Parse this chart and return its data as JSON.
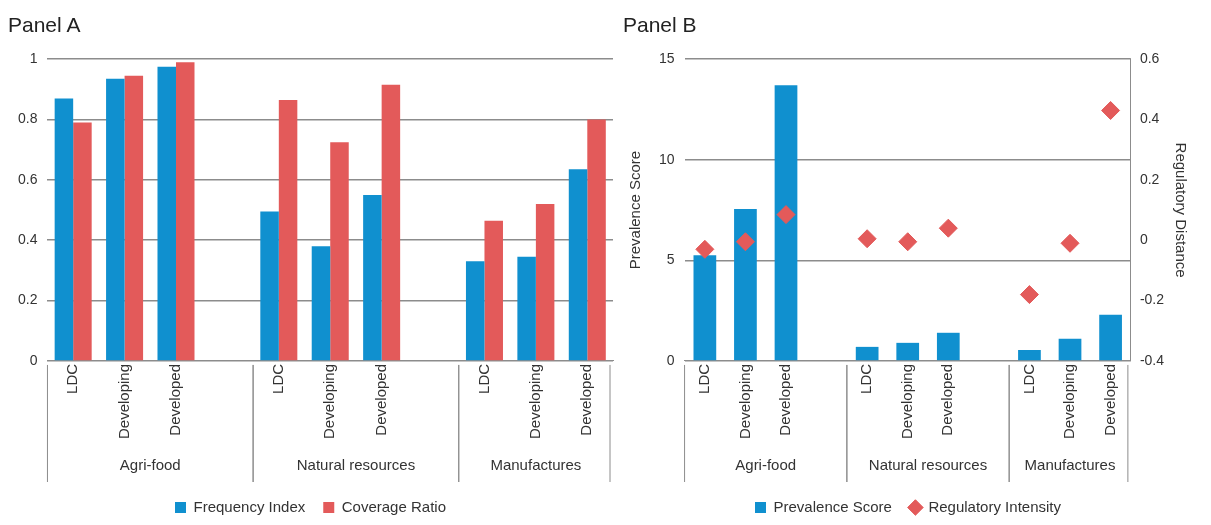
{
  "chart_data": [
    {
      "type": "bar",
      "title": "Panel A",
      "categories": [
        "LDC",
        "Developing",
        "Developed",
        null,
        "LDC",
        "Developing",
        "Developed",
        null,
        "LDC",
        "Developing",
        "Developed"
      ],
      "series": [
        {
          "name": "Frequency Index",
          "color": "#1090cf",
          "values": [
            0.87,
            0.935,
            0.975,
            null,
            0.495,
            0.38,
            0.55,
            null,
            0.33,
            0.345,
            0.635
          ]
        },
        {
          "name": "Coverage Ratio",
          "color": "#e35a5a",
          "values": [
            0.79,
            0.945,
            0.99,
            null,
            0.865,
            0.725,
            0.915,
            null,
            0.465,
            0.52,
            0.8
          ]
        }
      ],
      "annotations": [
        "Agri-food",
        "Natural resources",
        "Manufactures"
      ],
      "ylim": [
        0,
        1
      ],
      "yticks": [
        0,
        0.2,
        0.4,
        0.6,
        0.8,
        1
      ],
      "grid": "y",
      "legend": "bottom"
    },
    {
      "type": "bar",
      "title": "Panel B",
      "categories": [
        "LDC",
        "Developing",
        "Developed",
        null,
        "LDC",
        "Developing",
        "Developed",
        null,
        "LDC",
        "Developing",
        "Developed"
      ],
      "series": [
        {
          "name": "Prevalence Score",
          "color": "#1090cf",
          "values": [
            5.25,
            7.55,
            13.7,
            null,
            0.7,
            0.9,
            1.4,
            null,
            0.55,
            1.1,
            2.3
          ]
        },
        {
          "name": "Regulatory Intensity",
          "type": "scatter",
          "axis": "y2",
          "color": "#e35a5a",
          "values": [
            -0.03,
            -0.005,
            0.085,
            null,
            0.005,
            -0.005,
            0.04,
            null,
            -0.18,
            -0.01,
            0.43
          ]
        }
      ],
      "annotations": [
        "Agri-food",
        "Natural resources",
        "Manufactures"
      ],
      "ylabel": "Prevalence Score",
      "y2label": "Regulatory Distance",
      "ylim": [
        0,
        15
      ],
      "yticks": [
        0,
        5,
        10,
        15
      ],
      "y2lim": [
        -0.4,
        0.6
      ],
      "y2ticks": [
        -0.4,
        -0.2,
        0,
        0.2,
        0.4,
        0.6
      ],
      "grid": "y",
      "legend": "bottom",
      "marker": "diamond"
    }
  ]
}
